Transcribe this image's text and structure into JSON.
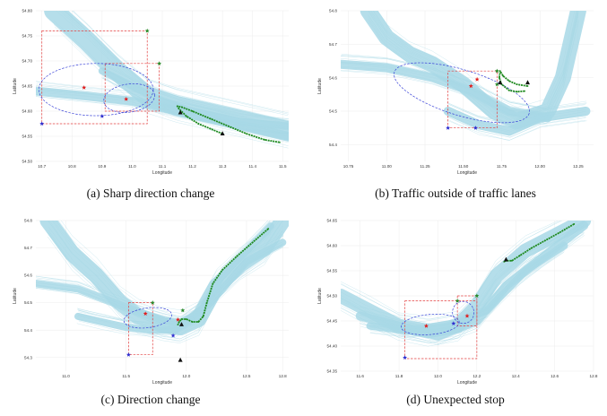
{
  "colors": {
    "traffic": "#a8d8e6",
    "ellipse": "#3b44d8",
    "rectangle": "#e34040",
    "anomaly_track": "#1f8a1f",
    "point_red": "#e02020",
    "point_blue": "#3030d0",
    "point_green": "#2a8a2a",
    "point_black": "#111111"
  },
  "chart_data": [
    {
      "type": "scatter",
      "caption": "(a) Sharp direction change",
      "xlabel": "Longitude",
      "ylabel": "Latitude",
      "xlim": [
        10.68,
        11.52
      ],
      "ylim": [
        54.5,
        54.8
      ],
      "x_ticks": [
        "10.7",
        "10.8",
        "10.9",
        "11.0",
        "11.1",
        "11.2",
        "11.3",
        "11.4",
        "11.5"
      ],
      "y_ticks": [
        "54.50",
        "54.55",
        "54.60",
        "54.65",
        "54.70",
        "54.75",
        "54.80"
      ],
      "traffic_lanes": [
        {
          "lon": [
            10.74,
            10.85,
            10.95,
            11.05,
            11.15,
            11.3,
            11.52
          ],
          "lat": [
            54.8,
            54.74,
            54.68,
            54.63,
            54.61,
            54.59,
            54.56
          ],
          "width": 22
        },
        {
          "lon": [
            10.68,
            10.85,
            11.0,
            11.15,
            11.3,
            11.52
          ],
          "lat": [
            54.64,
            54.63,
            54.62,
            54.6,
            54.58,
            54.55
          ],
          "width": 10
        },
        {
          "lon": [
            10.9,
            11.0,
            11.1,
            11.2,
            11.35,
            11.52
          ],
          "lat": [
            54.68,
            54.65,
            54.62,
            54.6,
            54.58,
            54.57
          ],
          "width": 8
        }
      ],
      "ellipses": [
        {
          "cx": 10.88,
          "cy": 54.643,
          "rx": 0.19,
          "ry": 0.052,
          "angle": 0
        },
        {
          "cx": 10.99,
          "cy": 54.626,
          "rx": 0.085,
          "ry": 0.028,
          "angle": -8
        }
      ],
      "rectangles": [
        {
          "x0": 10.7,
          "x1": 11.05,
          "y0": 54.575,
          "y1": 54.76
        },
        {
          "x0": 10.91,
          "x1": 11.09,
          "y0": 54.6,
          "y1": 54.695
        }
      ],
      "anomaly_track": {
        "lon": [
          11.3,
          11.26,
          11.22,
          11.18,
          11.155,
          11.15,
          11.165,
          11.2,
          11.26,
          11.32,
          11.38,
          11.44,
          11.49
        ],
        "lat": [
          54.555,
          54.565,
          54.575,
          54.59,
          54.605,
          54.61,
          54.608,
          54.6,
          54.585,
          54.57,
          54.555,
          54.543,
          54.538
        ]
      },
      "points": [
        {
          "lon": 10.84,
          "lat": 54.647,
          "marker": "star",
          "color": "red"
        },
        {
          "lon": 10.98,
          "lat": 54.624,
          "marker": "star",
          "color": "red"
        },
        {
          "lon": 10.7,
          "lat": 54.575,
          "marker": "star",
          "color": "blue"
        },
        {
          "lon": 10.9,
          "lat": 54.59,
          "marker": "star",
          "color": "blue"
        },
        {
          "lon": 11.05,
          "lat": 54.76,
          "marker": "star",
          "color": "green"
        },
        {
          "lon": 11.09,
          "lat": 54.695,
          "marker": "star",
          "color": "green"
        },
        {
          "lon": 11.16,
          "lat": 54.597,
          "marker": "triangle",
          "color": "black"
        },
        {
          "lon": 11.3,
          "lat": 54.555,
          "marker": "triangle",
          "color": "black"
        }
      ]
    },
    {
      "type": "scatter",
      "caption": "(b) Traffic outside of traffic lanes",
      "xlabel": "Longitude",
      "ylabel": "Latitude",
      "xlim": [
        10.7,
        12.35
      ],
      "ylim": [
        54.35,
        54.8
      ],
      "x_ticks": [
        "10.75",
        "11.00",
        "11.25",
        "11.50",
        "11.75",
        "12.00",
        "12.25"
      ],
      "y_ticks": [
        "54.4",
        "54.5",
        "54.6",
        "54.7",
        "54.8"
      ],
      "traffic_lanes": [
        {
          "lon": [
            10.88,
            11.0,
            11.15,
            11.3,
            11.5,
            11.7,
            11.85,
            12.05,
            12.15,
            12.25
          ],
          "lat": [
            54.8,
            54.72,
            54.67,
            54.64,
            54.58,
            54.5,
            54.47,
            54.5,
            54.6,
            54.8
          ],
          "width": 18
        },
        {
          "lon": [
            10.7,
            11.0,
            11.3,
            11.55,
            11.8,
            12.05
          ],
          "lat": [
            54.64,
            54.63,
            54.6,
            54.56,
            54.5,
            54.48
          ],
          "width": 10
        },
        {
          "lon": [
            11.4,
            11.6,
            11.8,
            12.0,
            12.3
          ],
          "lat": [
            54.5,
            54.46,
            54.44,
            54.48,
            54.5
          ],
          "width": 10
        }
      ],
      "ellipses": [
        {
          "cx": 11.49,
          "cy": 54.555,
          "rx": 0.46,
          "ry": 0.068,
          "angle": 17
        }
      ],
      "rectangles": [
        {
          "x0": 11.4,
          "x1": 11.72,
          "y0": 54.45,
          "y1": 54.62
        }
      ],
      "anomaly_track": {
        "lon": [
          11.92,
          11.85,
          11.8,
          11.76,
          11.74,
          11.735,
          11.75,
          11.8,
          11.85,
          11.9
        ],
        "lat": [
          54.575,
          54.58,
          54.59,
          54.605,
          54.62,
          54.6,
          54.58,
          54.562,
          54.558,
          54.56
        ]
      },
      "points": [
        {
          "lon": 11.55,
          "lat": 54.575,
          "marker": "star",
          "color": "red"
        },
        {
          "lon": 11.59,
          "lat": 54.595,
          "marker": "star",
          "color": "red"
        },
        {
          "lon": 11.4,
          "lat": 54.45,
          "marker": "star",
          "color": "blue"
        },
        {
          "lon": 11.58,
          "lat": 54.45,
          "marker": "star",
          "color": "blue"
        },
        {
          "lon": 11.72,
          "lat": 54.62,
          "marker": "star",
          "color": "green"
        },
        {
          "lon": 11.72,
          "lat": 54.58,
          "marker": "star",
          "color": "green"
        },
        {
          "lon": 11.74,
          "lat": 54.585,
          "marker": "triangle",
          "color": "black"
        },
        {
          "lon": 11.92,
          "lat": 54.585,
          "marker": "triangle",
          "color": "black"
        }
      ]
    },
    {
      "type": "scatter",
      "caption": "(c) Direction change",
      "xlabel": "Longitude",
      "ylabel": "Latitude",
      "xlim": [
        10.75,
        12.85
      ],
      "ylim": [
        54.25,
        54.8
      ],
      "x_ticks": [
        "11.0",
        "11.5",
        "12.0",
        "12.5",
        "12.8"
      ],
      "y_ticks": [
        "54.3",
        "54.4",
        "54.5",
        "54.6",
        "54.7",
        "54.8"
      ],
      "traffic_lanes": [
        {
          "lon": [
            10.85,
            11.05,
            11.25,
            11.45,
            11.6,
            11.8,
            11.95,
            12.1,
            12.25,
            12.45,
            12.65,
            12.8
          ],
          "lat": [
            54.8,
            54.68,
            54.6,
            54.5,
            54.45,
            54.42,
            54.41,
            54.44,
            54.56,
            54.64,
            54.7,
            54.8
          ],
          "width": 18
        },
        {
          "lon": [
            10.75,
            11.1,
            11.4,
            11.7,
            11.95,
            12.2,
            12.5,
            12.8
          ],
          "lat": [
            54.57,
            54.55,
            54.5,
            54.45,
            54.42,
            54.5,
            54.65,
            54.72
          ],
          "width": 8
        },
        {
          "lon": [
            11.1,
            11.3,
            11.5,
            11.7,
            11.9,
            12.1,
            12.3,
            12.7
          ],
          "lat": [
            54.45,
            54.43,
            54.41,
            54.4,
            54.4,
            54.45,
            54.6,
            54.78
          ],
          "width": 8
        }
      ],
      "ellipses": [
        {
          "cx": 11.68,
          "cy": 54.445,
          "rx": 0.2,
          "ry": 0.036,
          "angle": -8
        }
      ],
      "rectangles": [
        {
          "x0": 11.52,
          "x1": 11.72,
          "y0": 54.31,
          "y1": 54.5
        }
      ],
      "anomaly_track": {
        "lon": [
          12.68,
          12.55,
          12.42,
          12.3,
          12.22,
          12.17,
          12.14,
          12.1,
          12.05,
          12.0,
          11.96,
          11.94,
          11.93
        ],
        "lat": [
          54.77,
          54.72,
          54.67,
          54.62,
          54.57,
          54.5,
          54.45,
          54.43,
          54.43,
          54.44,
          54.44,
          54.43,
          54.42
        ]
      },
      "points": [
        {
          "lon": 11.66,
          "lat": 54.46,
          "marker": "star",
          "color": "red"
        },
        {
          "lon": 11.93,
          "lat": 54.438,
          "marker": "star",
          "color": "red"
        },
        {
          "lon": 11.52,
          "lat": 54.31,
          "marker": "star",
          "color": "blue"
        },
        {
          "lon": 11.89,
          "lat": 54.38,
          "marker": "star",
          "color": "blue"
        },
        {
          "lon": 11.72,
          "lat": 54.5,
          "marker": "star",
          "color": "green"
        },
        {
          "lon": 11.97,
          "lat": 54.472,
          "marker": "star",
          "color": "green"
        },
        {
          "lon": 11.96,
          "lat": 54.42,
          "marker": "triangle",
          "color": "black"
        },
        {
          "lon": 11.95,
          "lat": 54.29,
          "marker": "triangle",
          "color": "black"
        }
      ]
    },
    {
      "type": "scatter",
      "caption": "(d) Unexpected stop",
      "xlabel": "Longitude",
      "ylabel": "Latitude",
      "xlim": [
        11.5,
        12.8
      ],
      "ylim": [
        54.35,
        54.65
      ],
      "x_ticks": [
        "11.6",
        "11.8",
        "12.0",
        "12.2",
        "12.4",
        "12.6",
        "12.8"
      ],
      "y_ticks": [
        "54.35",
        "54.40",
        "54.45",
        "54.50",
        "54.55",
        "54.60",
        "54.65"
      ],
      "traffic_lanes": [
        {
          "lon": [
            11.5,
            11.65,
            11.8,
            11.95,
            12.1,
            12.2,
            12.3,
            12.45,
            12.6,
            12.75
          ],
          "lat": [
            54.5,
            54.47,
            54.44,
            54.43,
            54.44,
            54.48,
            54.54,
            54.59,
            54.62,
            54.65
          ],
          "width": 16
        },
        {
          "lon": [
            11.6,
            11.8,
            12.0,
            12.2,
            12.35,
            12.55,
            12.75
          ],
          "lat": [
            54.46,
            54.44,
            54.42,
            54.45,
            54.52,
            54.58,
            54.64
          ],
          "width": 10
        },
        {
          "lon": [
            11.65,
            11.85,
            12.05,
            12.25,
            12.45,
            12.65
          ],
          "lat": [
            54.44,
            54.43,
            54.44,
            54.47,
            54.55,
            54.6
          ],
          "width": 8
        }
      ],
      "ellipses": [
        {
          "cx": 11.96,
          "cy": 54.443,
          "rx": 0.15,
          "ry": 0.02,
          "angle": -5
        },
        {
          "cx": 12.13,
          "cy": 54.467,
          "rx": 0.055,
          "ry": 0.022,
          "angle": -20
        }
      ],
      "rectangles": [
        {
          "x0": 11.83,
          "x1": 12.2,
          "y0": 54.375,
          "y1": 54.49
        },
        {
          "x0": 12.1,
          "x1": 12.2,
          "y0": 54.44,
          "y1": 54.5
        }
      ],
      "anomaly_track": {
        "lon": [
          12.7,
          12.62,
          12.55,
          12.48,
          12.42,
          12.38,
          12.35,
          12.34
        ],
        "lat": [
          54.643,
          54.625,
          54.61,
          54.595,
          54.58,
          54.57,
          54.57,
          54.568
        ]
      },
      "points": [
        {
          "lon": 11.94,
          "lat": 54.44,
          "marker": "star",
          "color": "red"
        },
        {
          "lon": 12.15,
          "lat": 54.46,
          "marker": "star",
          "color": "red"
        },
        {
          "lon": 11.83,
          "lat": 54.377,
          "marker": "star",
          "color": "blue"
        },
        {
          "lon": 12.08,
          "lat": 54.445,
          "marker": "star",
          "color": "blue"
        },
        {
          "lon": 12.2,
          "lat": 54.5,
          "marker": "star",
          "color": "green"
        },
        {
          "lon": 12.1,
          "lat": 54.49,
          "marker": "star",
          "color": "green"
        },
        {
          "lon": 12.35,
          "lat": 54.572,
          "marker": "triangle",
          "color": "black"
        }
      ]
    }
  ]
}
